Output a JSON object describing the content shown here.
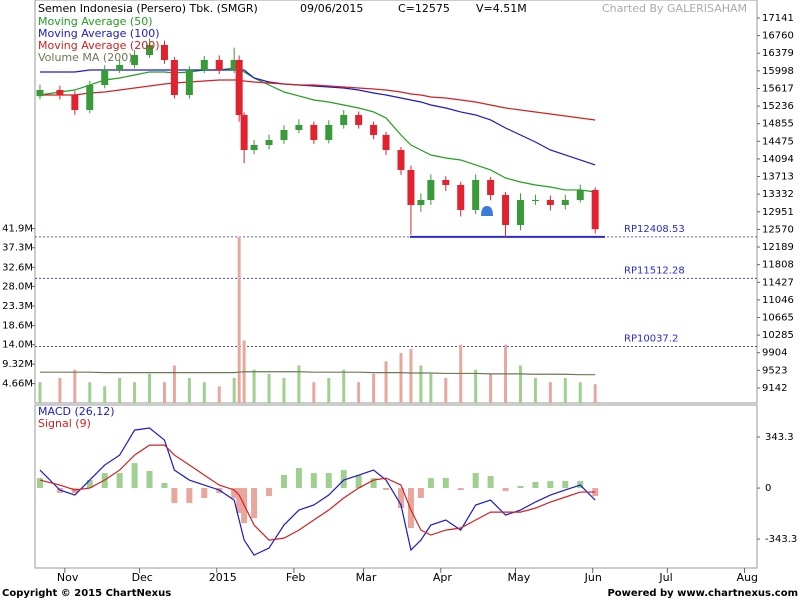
{
  "header": {
    "title": "Semen Indonesia (Persero) Tbk. (SMGR)",
    "date": "09/06/2015",
    "close": "C=12575",
    "volume": "V=4.51M",
    "credit": "Charted By GALERISAHAM"
  },
  "footer": {
    "copyright": "Copyright © 2015 ChartNexus",
    "powered": "Powered by www.chartnexus.com"
  },
  "chart_data": [
    {
      "type": "candlestick",
      "up_color": "#3a9a3a",
      "down_color": "#e0232e",
      "x": [
        21,
        29,
        35,
        41,
        47,
        53,
        59,
        65,
        71,
        75,
        81,
        87,
        93,
        99,
        101,
        103,
        107,
        113,
        119,
        125,
        131,
        137,
        143,
        149,
        155,
        160,
        166,
        170,
        174,
        178,
        184,
        190,
        196,
        202,
        208,
        214,
        220,
        226,
        232,
        238,
        244
      ],
      "xlim": [
        19,
        309
      ],
      "xticks": [
        {
          "value": 31,
          "label": "Nov"
        },
        {
          "value": 61,
          "label": "Dec"
        },
        {
          "value": 92,
          "label": "2015"
        },
        {
          "value": 123,
          "label": "Feb"
        },
        {
          "value": 151,
          "label": "Mar"
        },
        {
          "value": 182,
          "label": "Apr"
        },
        {
          "value": 212,
          "label": "May"
        },
        {
          "value": 243,
          "label": "Jun"
        },
        {
          "value": 273,
          "label": "Jul"
        },
        {
          "value": 304,
          "label": "Aug"
        }
      ],
      "open": [
        15450,
        15584,
        15476,
        15152,
        15692,
        16017,
        16125,
        16341,
        16557,
        16233,
        15476,
        16017,
        16233,
        16017,
        16233,
        15044,
        14287,
        14395,
        14503,
        14720,
        14828,
        14503,
        14828,
        15044,
        14828,
        14612,
        14287,
        13855,
        13098,
        13206,
        13639,
        13531,
        12990,
        13639,
        13314,
        12666,
        13206,
        13206,
        13098,
        13206,
        13422
      ],
      "high": [
        15700,
        15680,
        15560,
        15780,
        16120,
        16230,
        16450,
        16700,
        16650,
        16300,
        16100,
        16320,
        16330,
        16500,
        16330,
        15100,
        14500,
        14620,
        14820,
        14950,
        14900,
        14930,
        15150,
        15120,
        14900,
        14680,
        14350,
        13950,
        13350,
        13760,
        13720,
        13600,
        13760,
        13700,
        13380,
        13350,
        13320,
        13300,
        13320,
        13540,
        13480
      ],
      "low": [
        15380,
        15380,
        15050,
        15080,
        15620,
        15950,
        16050,
        16280,
        16150,
        15400,
        15400,
        15950,
        15930,
        15950,
        14900,
        14000,
        14200,
        14300,
        14420,
        14650,
        14420,
        14430,
        14750,
        14750,
        14520,
        14180,
        13750,
        12450,
        12950,
        13100,
        13400,
        12850,
        12900,
        13200,
        12400,
        12550,
        13100,
        12980,
        13000,
        13150,
        12480
      ],
      "close": [
        15584,
        15476,
        15152,
        15692,
        16017,
        16125,
        16341,
        16557,
        16233,
        15476,
        16017,
        16233,
        16017,
        16233,
        15044,
        14287,
        14395,
        14503,
        14720,
        14828,
        14503,
        14828,
        15044,
        14828,
        14612,
        14287,
        13855,
        13098,
        13206,
        13639,
        13531,
        12990,
        13639,
        13314,
        12666,
        13206,
        13206,
        13098,
        13206,
        13422,
        12575
      ],
      "ylim": [
        8817,
        17530
      ],
      "yticks": [
        17141,
        16760,
        16379,
        15998,
        15617,
        15236,
        14855,
        14475,
        14094,
        13713,
        13332,
        12951,
        12570,
        12189,
        11808,
        11427,
        11046,
        10665,
        10285,
        9904,
        9523,
        9142
      ],
      "series": [
        {
          "name": "Moving Average (50)",
          "color": "#1f9e1f",
          "values": [
            15476,
            15541,
            15584,
            15692,
            15801,
            15844,
            15909,
            15974,
            15974,
            15952,
            15974,
            16017,
            16017,
            16060,
            16017,
            15974,
            15844,
            15692,
            15541,
            15455,
            15368,
            15325,
            15260,
            15195,
            15109,
            14979,
            14611,
            14395,
            14287,
            14179,
            14114,
            14071,
            13963,
            13855,
            13682,
            13595,
            13530,
            13487,
            13423,
            13423,
            13379
          ]
        },
        {
          "name": "Moving Average (100)",
          "color": "#1a1acc",
          "values": [
            15974,
            15974,
            15974,
            16017,
            16017,
            16017,
            16017,
            16017,
            16017,
            16017,
            16017,
            16017,
            16017,
            16017,
            16017,
            16017,
            15844,
            15757,
            15714,
            15692,
            15671,
            15649,
            15628,
            15584,
            15519,
            15476,
            15411,
            15368,
            15325,
            15260,
            15195,
            15109,
            15044,
            14936,
            14763,
            14611,
            14460,
            14287,
            14179,
            14071,
            13963
          ]
        },
        {
          "name": "Moving Average (200)",
          "color": "#d42020",
          "values": [
            15476,
            15476,
            15476,
            15519,
            15541,
            15584,
            15628,
            15671,
            15714,
            15736,
            15757,
            15779,
            15801,
            15801,
            15801,
            15779,
            15757,
            15736,
            15714,
            15692,
            15692,
            15671,
            15649,
            15628,
            15606,
            15584,
            15541,
            15498,
            15476,
            15433,
            15411,
            15368,
            15325,
            15260,
            15195,
            15152,
            15109,
            15065,
            15022,
            14979,
            14936
          ]
        }
      ],
      "levels": [
        {
          "value": 12408.53,
          "label": "RP12408.53"
        },
        {
          "value": 11512.28,
          "label": "RP11512.28"
        },
        {
          "value": 10037.2,
          "label": "RP10037.2"
        }
      ],
      "level_color": "#2a2ad0"
    },
    {
      "type": "volume",
      "ylim": [
        0,
        96.8
      ],
      "yticks": [
        {
          "value": 41.9,
          "label": "41.9M"
        },
        {
          "value": 37.3,
          "label": "37.3M"
        },
        {
          "value": 32.6,
          "label": "32.6M"
        },
        {
          "value": 28.0,
          "label": "28.0M"
        },
        {
          "value": 23.3,
          "label": "23.3M"
        },
        {
          "value": 18.6,
          "label": "18.6M"
        },
        {
          "value": 14.0,
          "label": "14.0M"
        },
        {
          "value": 9.32,
          "label": "9.32M"
        },
        {
          "value": 4.66,
          "label": "4.66M"
        }
      ],
      "values": [
        5,
        6,
        8,
        5,
        4,
        6,
        5,
        7,
        5,
        9,
        6,
        5,
        4,
        6,
        40,
        15,
        8,
        7,
        6,
        9,
        5,
        6,
        8,
        5,
        7,
        10,
        12,
        13,
        9,
        7,
        6,
        14,
        8,
        7,
        14,
        9,
        6,
        5,
        6,
        5,
        4.51
      ],
      "up_color": "#9fd08f",
      "down_color": "#e8a79c",
      "series": [
        {
          "name": "Volume MA (200)",
          "color": "#6b7a55",
          "values": [
            7.4,
            7.4,
            7.4,
            7.4,
            7.3,
            7.3,
            7.3,
            7.3,
            7.3,
            7.3,
            7.3,
            7.3,
            7.3,
            7.3,
            7.4,
            7.5,
            7.5,
            7.5,
            7.5,
            7.5,
            7.4,
            7.4,
            7.4,
            7.4,
            7.3,
            7.3,
            7.3,
            7.2,
            7.2,
            7.2,
            7.1,
            7.1,
            7.1,
            7.0,
            7.0,
            7.0,
            6.9,
            6.9,
            6.9,
            6.8,
            6.8
          ]
        }
      ]
    },
    {
      "type": "macd",
      "ylim": [
        -538,
        559
      ],
      "yticks": [
        343.3,
        0,
        -343.3
      ],
      "histogram": [
        67,
        -33,
        -34,
        54,
        101,
        101,
        168,
        115,
        34,
        -101,
        -101,
        -67,
        -33,
        -68,
        -168,
        -236,
        -202,
        -54,
        88,
        135,
        101,
        101,
        121,
        87,
        67,
        -13,
        -134,
        -269,
        -67,
        67,
        68,
        -14,
        101,
        81,
        -20,
        14,
        41,
        47,
        48,
        47,
        -54
      ],
      "pos_color": "#9fd08f",
      "neg_color": "#e8a79c",
      "series": [
        {
          "name": "MACD (26,12)",
          "color": "#1a1acc",
          "values": [
            121,
            -13,
            -47,
            54,
            155,
            222,
            390,
            404,
            323,
            121,
            54,
            20,
            -13,
            -81,
            -215,
            -350,
            -451,
            -404,
            -249,
            -148,
            -114,
            -47,
            54,
            87,
            121,
            54,
            -114,
            -417,
            -350,
            -249,
            -215,
            -283,
            -114,
            -81,
            -182,
            -148,
            -94,
            -47,
            -13,
            20,
            -81
          ]
        },
        {
          "name": "Signal (9)",
          "color": "#d42020",
          "values": [
            54,
            20,
            -13,
            0,
            54,
            121,
            222,
            289,
            289,
            222,
            155,
            87,
            20,
            -13,
            -47,
            -114,
            -249,
            -350,
            -337,
            -283,
            -215,
            -148,
            -67,
            0,
            54,
            67,
            20,
            -148,
            -283,
            -316,
            -283,
            -269,
            -215,
            -162,
            -162,
            -162,
            -135,
            -94,
            -61,
            -27,
            -27
          ]
        }
      ]
    }
  ]
}
